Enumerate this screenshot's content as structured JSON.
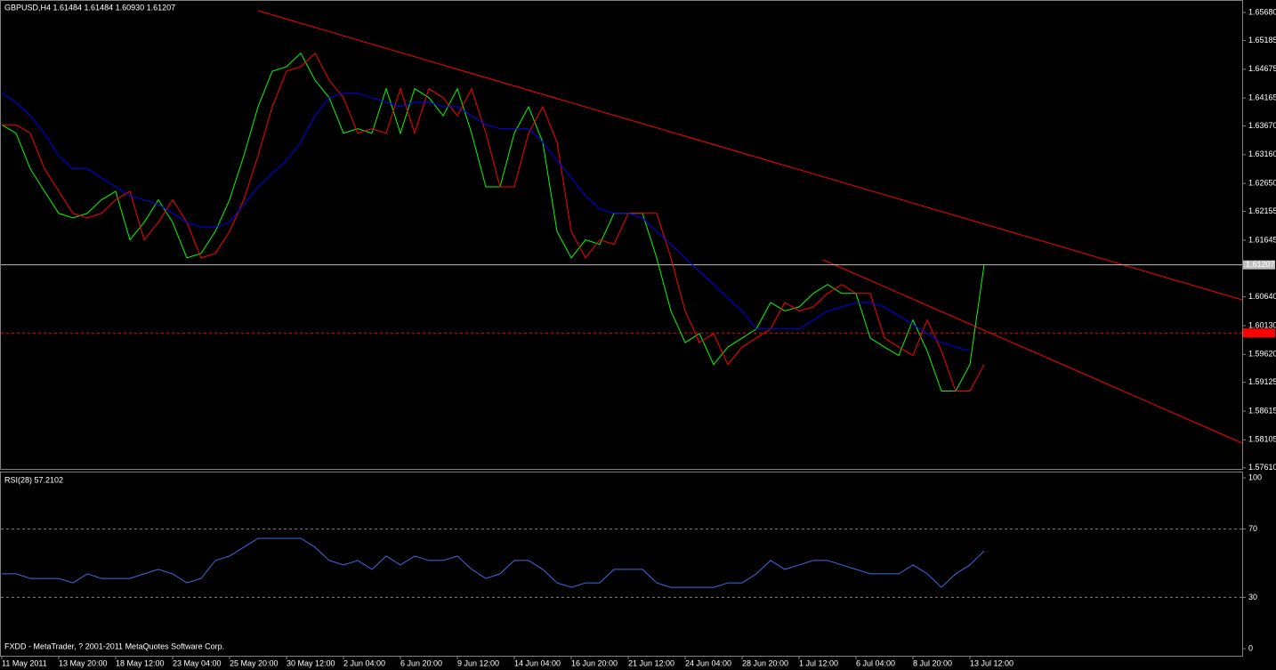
{
  "chart_data": [
    {
      "type": "line",
      "title": "GBPUSD,H4  1.61484 1.61484 1.60930 1.61207",
      "categories": [
        "11 May 2011",
        null,
        null,
        null,
        "13 May 20:00",
        null,
        null,
        null,
        "18 May 12:00",
        null,
        null,
        null,
        "23 May 04:00",
        null,
        null,
        null,
        "25 May 20:00",
        null,
        null,
        null,
        "30 May 12:00",
        null,
        null,
        null,
        "2 Jun 04:00",
        null,
        null,
        null,
        "6 Jun 20:00",
        null,
        null,
        null,
        "9 Jun 12:00",
        null,
        null,
        null,
        "14 Jun 04:00",
        null,
        null,
        null,
        "16 Jun 20:00",
        null,
        null,
        null,
        "21 Jun 12:00",
        null,
        null,
        null,
        "24 Jun 04:00",
        null,
        null,
        null,
        "28 Jun 20:00",
        null,
        null,
        null,
        "1 Jul 12:00",
        null,
        null,
        null,
        "6 Jul 04:00",
        null,
        null,
        null,
        "8 Jul 20:00",
        null,
        null,
        null,
        "13 Jul 12:00",
        null
      ],
      "series": [
        {
          "color": "#00ff00",
          "values": [
            1.6369,
            1.6354,
            1.6291,
            1.6251,
            1.6212,
            1.6204,
            1.6212,
            1.6236,
            1.6251,
            1.6165,
            1.6196,
            1.6236,
            1.6196,
            1.6133,
            1.6141,
            1.618,
            1.6236,
            1.6314,
            1.6401,
            1.6464,
            1.6472,
            1.6496,
            1.6448,
            1.6417,
            1.6354,
            1.6362,
            1.6354,
            1.6433,
            1.6354,
            1.6433,
            1.6417,
            1.6385,
            1.6433,
            1.6354,
            1.6259,
            1.6259,
            1.6354,
            1.6401,
            1.6338,
            1.618,
            1.6133,
            1.6165,
            1.6157,
            1.6212,
            1.6212,
            1.6212,
            1.6133,
            1.6039,
            1.5983,
            1.5999,
            1.5944,
            1.5975,
            1.5991,
            1.6007,
            1.6054,
            1.6039,
            1.6046,
            1.607,
            1.6086,
            1.607,
            1.607,
            1.5991,
            1.5975,
            1.596,
            1.6023,
            1.5968,
            1.5897,
            1.5897,
            1.5944,
            1.6121
          ]
        },
        {
          "color": "#ff0000",
          "values": [
            1.6369,
            1.6369,
            1.6354,
            1.6291,
            1.6251,
            1.6212,
            1.6204,
            1.6212,
            1.6236,
            1.6251,
            1.6165,
            1.6196,
            1.6236,
            1.6196,
            1.6133,
            1.6141,
            1.618,
            1.6236,
            1.6314,
            1.6401,
            1.6464,
            1.6472,
            1.6496,
            1.6448,
            1.6417,
            1.6354,
            1.6362,
            1.6354,
            1.6433,
            1.6354,
            1.6433,
            1.6417,
            1.6385,
            1.6433,
            1.6354,
            1.6259,
            1.6259,
            1.6354,
            1.6401,
            1.6338,
            1.618,
            1.6133,
            1.6165,
            1.6157,
            1.6212,
            1.6212,
            1.6212,
            1.6133,
            1.6039,
            1.5983,
            1.5999,
            1.5944,
            1.5975,
            1.5991,
            1.6007,
            1.6054,
            1.6039,
            1.6046,
            1.607,
            1.6086,
            1.607,
            1.607,
            1.5991,
            1.5975,
            1.596,
            1.6023,
            1.5968,
            1.5897,
            1.5897,
            1.5944
          ]
        },
        {
          "color": "#0000ff",
          "values": [
            1.6425,
            1.6409,
            1.6385,
            1.6354,
            1.6314,
            1.6291,
            1.6291,
            1.6275,
            1.6259,
            1.6243,
            1.6236,
            1.6228,
            1.6212,
            1.6196,
            1.6188,
            1.6188,
            1.6196,
            1.6228,
            1.6259,
            1.6283,
            1.6306,
            1.6338,
            1.6385,
            1.6417,
            1.6425,
            1.6425,
            1.6417,
            1.6409,
            1.6401,
            1.6409,
            1.6409,
            1.6401,
            1.6401,
            1.6385,
            1.6369,
            1.6362,
            1.6362,
            1.6362,
            1.6338,
            1.6306,
            1.6275,
            1.6243,
            1.622,
            1.6212,
            1.6212,
            1.6204,
            1.618,
            1.6157,
            1.6133,
            1.6109,
            1.6086,
            1.6062,
            1.6039,
            1.6007,
            1.6007,
            1.6007,
            1.6007,
            1.6023,
            1.6039,
            1.6046,
            1.6054,
            1.6054,
            1.6046,
            1.6031,
            1.6015,
            1.5999,
            1.5983,
            1.5975,
            1.5968,
            null
          ]
        }
      ],
      "ylim": [
        1.5759,
        1.6587
      ],
      "yticks": [
        {
          "value": 1.6568,
          "label": "1.65680"
        },
        {
          "value": 1.65185,
          "label": "1.65185"
        },
        {
          "value": 1.64675,
          "label": "1.64675"
        },
        {
          "value": 1.64165,
          "label": "1.64165"
        },
        {
          "value": 1.6367,
          "label": "1.63670"
        },
        {
          "value": 1.6316,
          "label": "1.63160"
        },
        {
          "value": 1.6265,
          "label": "1.62650"
        },
        {
          "value": 1.62155,
          "label": "1.62155"
        },
        {
          "value": 1.61645,
          "label": "1.61645"
        },
        {
          "value": 1.6064,
          "label": "1.60640"
        },
        {
          "value": 1.6013,
          "label": "1.60130"
        },
        {
          "value": 1.5962,
          "label": "1.59620"
        },
        {
          "value": 1.59125,
          "label": "1.59125"
        },
        {
          "value": 1.58615,
          "label": "1.58615"
        },
        {
          "value": 1.58105,
          "label": "1.58105"
        },
        {
          "value": 1.5761,
          "label": "1.57610"
        }
      ],
      "bid": {
        "value": 1.61207,
        "label": "1.61207"
      },
      "level": {
        "value": 1.6,
        "color": "#ff0000"
      }
    },
    {
      "type": "line",
      "title": "RSI(28) 57.2102",
      "series": [
        {
          "color": "#4169e1",
          "values": [
            43.8,
            43.8,
            41.1,
            41.1,
            41.1,
            38.5,
            43.8,
            41.1,
            41.1,
            41.1,
            43.8,
            46.4,
            43.8,
            38.5,
            41.1,
            51.6,
            54.2,
            59.4,
            64.6,
            64.6,
            64.6,
            64.6,
            59.4,
            51.6,
            49.0,
            51.6,
            46.4,
            54.2,
            49.0,
            54.2,
            51.6,
            51.6,
            54.2,
            46.4,
            41.1,
            43.8,
            51.6,
            51.6,
            46.4,
            38.5,
            35.9,
            38.5,
            38.5,
            46.4,
            46.4,
            46.4,
            38.5,
            35.9,
            35.9,
            35.9,
            35.9,
            38.5,
            38.5,
            43.8,
            51.6,
            46.4,
            49.0,
            51.6,
            51.6,
            49.0,
            46.4,
            43.8,
            43.8,
            43.8,
            49.0,
            43.8,
            35.9,
            43.8,
            49.0,
            57.2
          ]
        }
      ],
      "ylim": [
        0,
        100
      ],
      "yticks": [
        0,
        30,
        70,
        100
      ],
      "grid": true
    }
  ],
  "footer": "FXDD - MetaTrader, ? 2001-2011 MetaQuotes Software Corp."
}
